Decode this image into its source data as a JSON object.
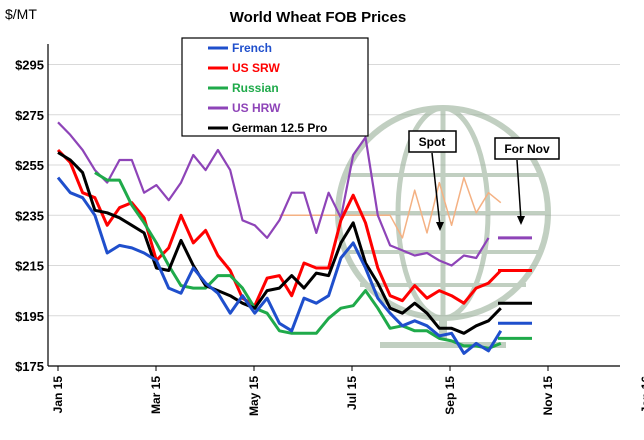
{
  "chart_data": {
    "type": "line",
    "title": "World Wheat FOB Prices",
    "unit_label": "$/MT",
    "ylim": [
      175,
      300
    ],
    "yticks": [
      175,
      195,
      215,
      235,
      255,
      275,
      295
    ],
    "ytick_labels": [
      "$175",
      "$195",
      "$215",
      "$235",
      "$255",
      "$275",
      "$295"
    ],
    "xtick_labels": [
      "Jan 15",
      "Mar 15",
      "May 15",
      "Jul 15",
      "Sep 15",
      "Nov 15",
      "Jan 16"
    ],
    "grid": "horizontal",
    "legend_position": "top-center",
    "series": [
      {
        "name": "French",
        "color": "#1f4fcc",
        "values": [
          250,
          244,
          242,
          235,
          220,
          223,
          222,
          220,
          217,
          206,
          204,
          214,
          208,
          204,
          196,
          203,
          196,
          202,
          192,
          189,
          202,
          200,
          203,
          218,
          224,
          214,
          202,
          196,
          191,
          193,
          191,
          187,
          188,
          180,
          184,
          181,
          189
        ],
        "forward": 192
      },
      {
        "name": "US SRW",
        "color": "#ff0000",
        "values": [
          261,
          256,
          244,
          242,
          231,
          238,
          240,
          234,
          217,
          222,
          235,
          224,
          229,
          219,
          213,
          202,
          199,
          210,
          211,
          203,
          216,
          214,
          214,
          233,
          243,
          232,
          214,
          203,
          201,
          207,
          202,
          205,
          203,
          200,
          206,
          208,
          213
        ],
        "forward": 213
      },
      {
        "name": "Russian",
        "color": "#1faa4a",
        "values": [
          null,
          null,
          null,
          252,
          249,
          249,
          239,
          232,
          224,
          215,
          207,
          206,
          206,
          211,
          211,
          206,
          198,
          196,
          189,
          188,
          188,
          188,
          194,
          198,
          199,
          205,
          198,
          190,
          191,
          189,
          189,
          186,
          185,
          183,
          183,
          182,
          184
        ],
        "forward": 186
      },
      {
        "name": "US HRW",
        "color": "#8e44b8",
        "values": [
          272,
          267,
          261,
          253,
          248,
          257,
          257,
          244,
          247,
          241,
          248,
          259,
          253,
          261,
          253,
          233,
          231,
          226,
          233,
          244,
          244,
          228,
          244,
          234,
          259,
          266,
          235,
          223,
          221,
          219,
          220,
          217,
          215,
          219,
          218,
          226,
          null
        ],
        "forward": 226
      },
      {
        "name": "German 12.5 Pro",
        "color": "#000000",
        "values": [
          260,
          257,
          252,
          237,
          236,
          234,
          231,
          228,
          214,
          213,
          225,
          215,
          207,
          205,
          203,
          200,
          198,
          205,
          206,
          211,
          206,
          212,
          211,
          224,
          232,
          216,
          208,
          198,
          196,
          200,
          196,
          190,
          190,
          188,
          191,
          193,
          198
        ],
        "forward": 200
      },
      {
        "name": "",
        "color": "#f4b183",
        "values": [
          null,
          null,
          null,
          null,
          null,
          null,
          null,
          null,
          null,
          null,
          null,
          null,
          null,
          null,
          null,
          null,
          null,
          null,
          235,
          235,
          235,
          235,
          235,
          235,
          235,
          235,
          235,
          235,
          226,
          245,
          228,
          248,
          231,
          250,
          236,
          244,
          240
        ],
        "forward": null
      }
    ],
    "annotations": {
      "spot_label": "Spot",
      "fornov_label": "For Nov"
    }
  }
}
